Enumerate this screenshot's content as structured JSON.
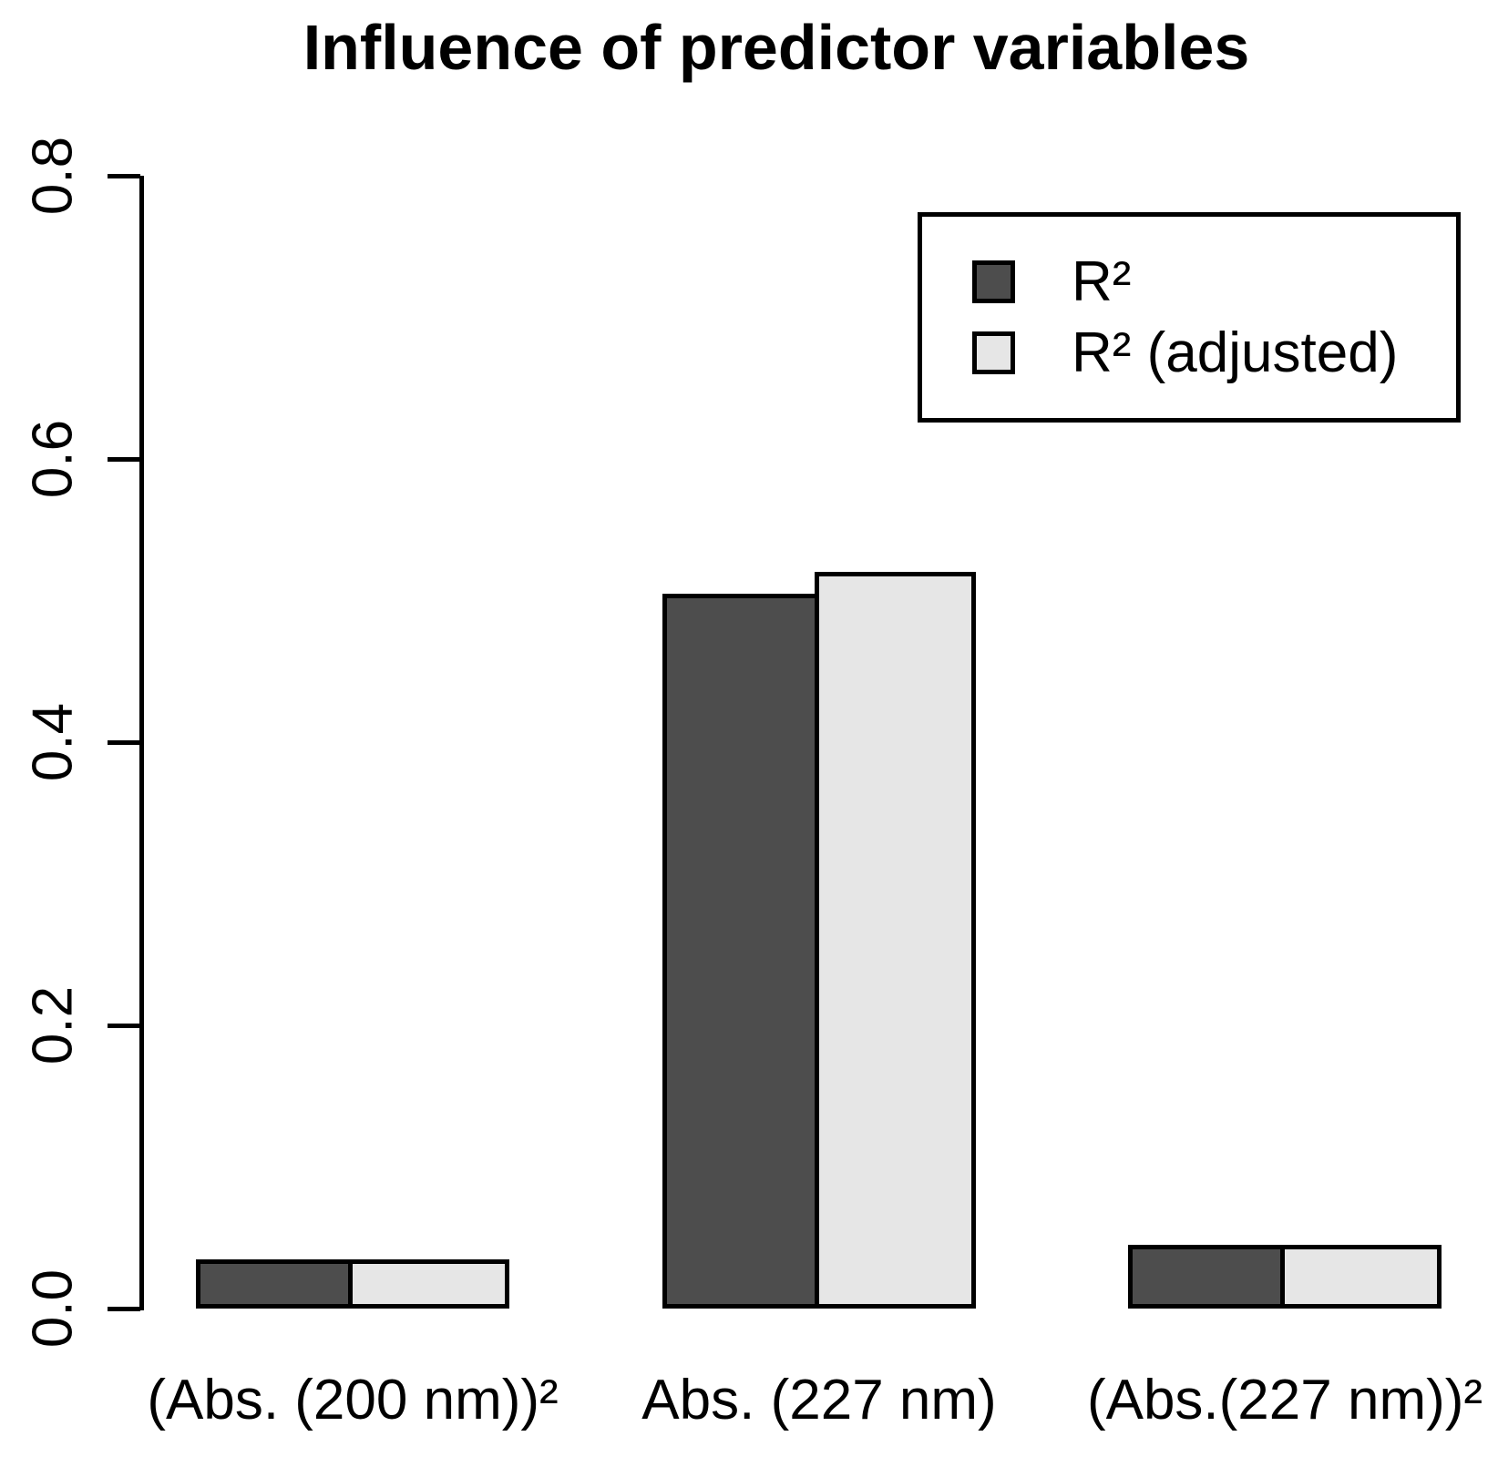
{
  "chart_data": {
    "type": "bar",
    "title": "Influence of predictor variables",
    "categories": [
      "(Abs. (200 nm))²",
      "Abs. (227 nm)",
      "(Abs.(227 nm))²"
    ],
    "series": [
      {
        "name": "R²",
        "color": "#4D4D4D",
        "values": [
          0.035,
          0.505,
          0.045
        ]
      },
      {
        "name": "R² (adjusted)",
        "color": "#E6E6E6",
        "values": [
          0.035,
          0.52,
          0.045
        ]
      }
    ],
    "xlabel": "",
    "ylabel": "",
    "ylim": [
      0,
      0.8
    ],
    "yticks": [
      "0.0",
      "0.2",
      "0.4",
      "0.6",
      "0.8"
    ],
    "grid": false,
    "legend_position": "top-right",
    "bar_border_color": "#000000",
    "axis_color": "#000000",
    "background_color": "#FFFFFF"
  }
}
